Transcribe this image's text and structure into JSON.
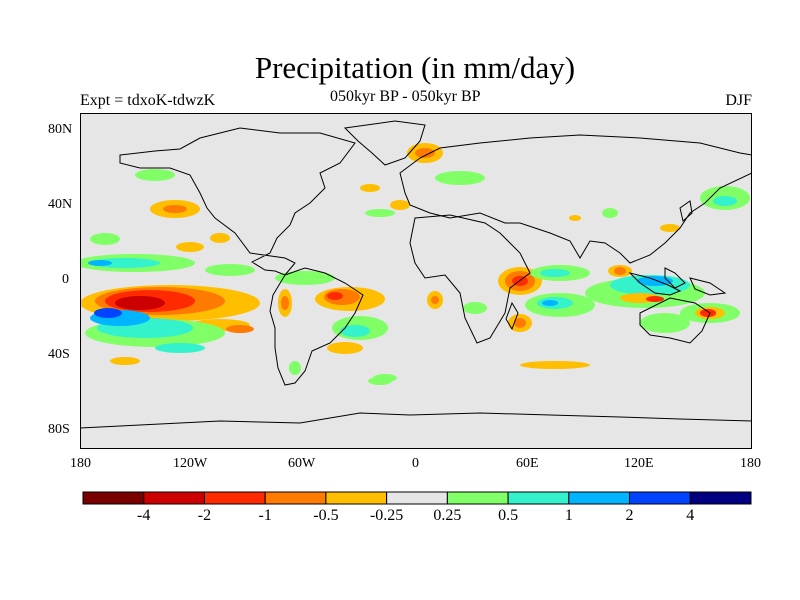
{
  "title": "Precipitation (in mm/day)",
  "expt": "Expt = tdxoK-tdwzK",
  "period": "050kyr BP - 050kyr BP",
  "season": "DJF",
  "lat_labels": [
    "80N",
    "40N",
    "0",
    "40S",
    "80S"
  ],
  "lon_labels": [
    "180",
    "120W",
    "60W",
    "0",
    "60E",
    "120E",
    "180"
  ],
  "colorbar": {
    "colors": [
      "#7a0000",
      "#cc0000",
      "#ff2a00",
      "#ff7a00",
      "#ffbe00",
      "#e6e6e6",
      "#80ff66",
      "#33f2cc",
      "#00b4ff",
      "#0044ff",
      "#000080"
    ],
    "labels": [
      "-4",
      "-2",
      "-1",
      "-0.5",
      "-0.25",
      "0.25",
      "0.5",
      "1",
      "2",
      "4"
    ]
  }
}
